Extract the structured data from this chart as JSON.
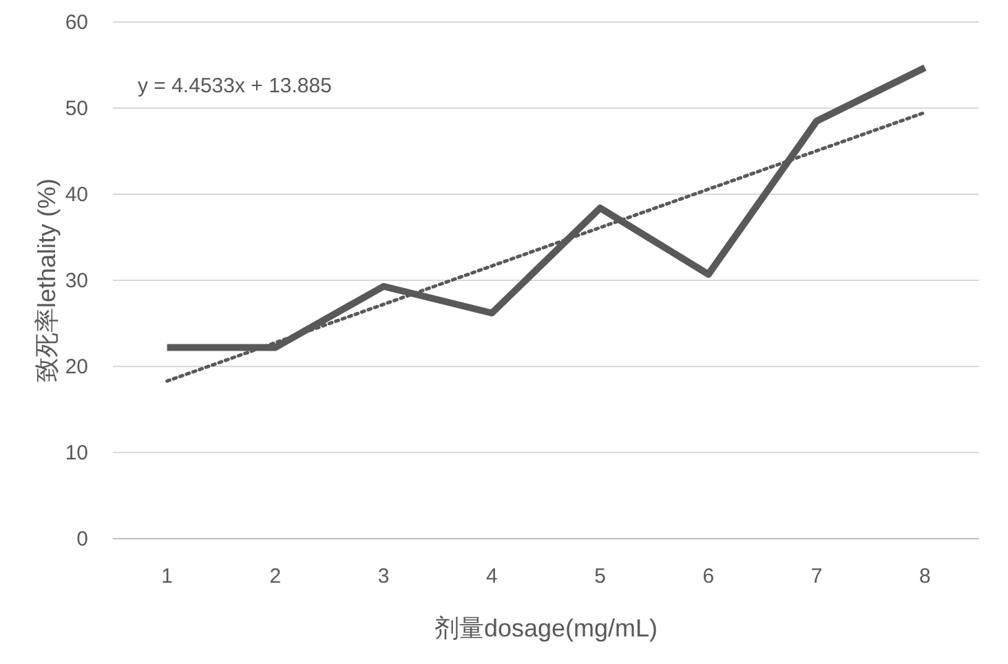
{
  "chart_data": {
    "type": "line",
    "xlabel": "剂量dosage(mg/mL)",
    "ylabel": "致死率lethality (%)",
    "x": [
      1,
      2,
      3,
      4,
      5,
      6,
      7,
      8
    ],
    "series": [
      {
        "color": "#595959",
        "values": [
          22.2,
          22.2,
          29.3,
          26.2,
          38.4,
          30.7,
          48.5,
          54.7
        ]
      },
      {
        "type": "line",
        "line_style": "dotted",
        "color": "#595959",
        "x": [
          1,
          8
        ],
        "values": [
          18.3,
          49.5
        ]
      }
    ],
    "xlim": [
      0.5,
      8.5
    ],
    "xticks": [
      1,
      2,
      3,
      4,
      5,
      6,
      7,
      8
    ],
    "ylim": [
      0,
      60
    ],
    "yticks": [
      0,
      10,
      20,
      30,
      40,
      50,
      60
    ],
    "grid": "y",
    "annotations": [
      "y = 4.4533x + 13.885"
    ]
  }
}
